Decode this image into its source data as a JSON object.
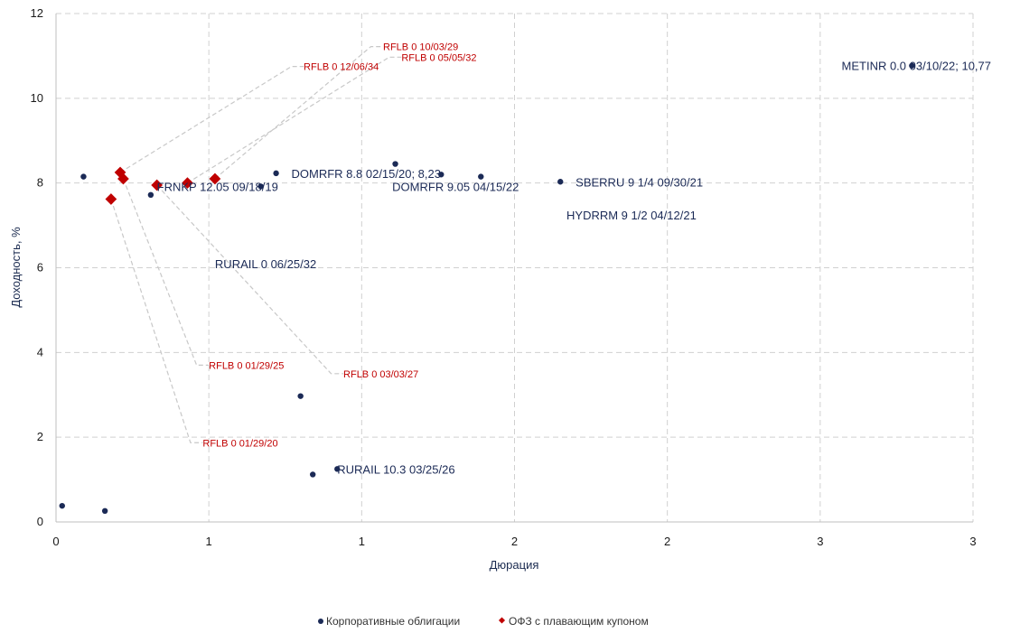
{
  "colors": {
    "corporate": "#1b2a56",
    "ofz": "#c00000",
    "grid": "#d0d0d0",
    "leader": "#c8c8c8"
  },
  "chart_data": {
    "type": "scatter",
    "title": "",
    "xlabel": "Дюрация",
    "ylabel": "Доходность, %",
    "xlim": [
      0,
      3
    ],
    "ylim": [
      0,
      12
    ],
    "x_ticks": [
      {
        "v": 0,
        "label": "0"
      },
      {
        "v": 0.5,
        "label": "1"
      },
      {
        "v": 1.0,
        "label": "1"
      },
      {
        "v": 1.5,
        "label": "2"
      },
      {
        "v": 2.0,
        "label": "2"
      },
      {
        "v": 2.5,
        "label": "3"
      },
      {
        "v": 3.0,
        "label": "3"
      }
    ],
    "y_ticks": [
      {
        "v": 0,
        "label": "0"
      },
      {
        "v": 2,
        "label": "2"
      },
      {
        "v": 4,
        "label": "4"
      },
      {
        "v": 6,
        "label": "6"
      },
      {
        "v": 8,
        "label": "8"
      },
      {
        "v": 10,
        "label": "10"
      },
      {
        "v": 12,
        "label": "12"
      }
    ],
    "grid": true,
    "legend_position": "bottom",
    "series": [
      {
        "name": "Корпоративные облигации",
        "marker": "circle",
        "points": [
          {
            "x": 0.02,
            "y": 0.38
          },
          {
            "x": 0.16,
            "y": 0.26
          },
          {
            "x": 0.09,
            "y": 8.15
          },
          {
            "x": 0.31,
            "y": 7.72
          },
          {
            "x": 0.67,
            "y": 7.92
          },
          {
            "x": 0.72,
            "y": 8.23
          },
          {
            "x": 0.8,
            "y": 2.97
          },
          {
            "x": 0.84,
            "y": 1.12
          },
          {
            "x": 0.92,
            "y": 1.25
          },
          {
            "x": 1.11,
            "y": 8.45
          },
          {
            "x": 1.26,
            "y": 8.2
          },
          {
            "x": 1.39,
            "y": 8.15
          },
          {
            "x": 1.65,
            "y": 8.03
          },
          {
            "x": 2.8,
            "y": 10.77
          }
        ]
      },
      {
        "name": "ОФЗ с плавающим купоном",
        "marker": "diamond",
        "points": [
          {
            "x": 0.18,
            "y": 7.62
          },
          {
            "x": 0.21,
            "y": 8.25
          },
          {
            "x": 0.22,
            "y": 8.1
          },
          {
            "x": 0.33,
            "y": 7.95
          },
          {
            "x": 0.43,
            "y": 8.0
          },
          {
            "x": 0.52,
            "y": 8.1
          }
        ]
      }
    ],
    "corporate_labels": [
      {
        "text": "FRNKP 12.05 09/18/19",
        "x": 0.33,
        "y": 7.92
      },
      {
        "text": "DOMRFR 8.8 02/15/20; 8,23",
        "x": 0.77,
        "y": 8.23
      },
      {
        "text": "RURAIL 0 06/25/32",
        "x": 0.52,
        "y": 6.1
      },
      {
        "text": "DOMRFR 9.05 04/15/22",
        "x": 1.1,
        "y": 7.92
      },
      {
        "text": "SBERRU 9 1/4 09/30/21",
        "x": 1.7,
        "y": 8.03
      },
      {
        "text": "HYDRRM 9 1/2 04/12/21",
        "x": 1.67,
        "y": 7.25
      },
      {
        "text": "METINR 0.0 03/10/22; 10,77",
        "x": 2.57,
        "y": 10.77
      },
      {
        "text": "RURAIL 10.3 03/25/26",
        "x": 0.92,
        "y": 1.25
      }
    ],
    "ofz_labels": [
      {
        "text": "RFLB 0 10/03/29",
        "x": 1.07,
        "y": 11.22,
        "anchor_x": 0.52,
        "anchor_y": 8.1,
        "elbow_x": 1.03,
        "elbow_y": 11.22
      },
      {
        "text": "RFLB 0 05/05/32",
        "x": 1.13,
        "y": 10.97,
        "anchor_x": 0.43,
        "anchor_y": 8.0,
        "elbow_x": 1.09,
        "elbow_y": 10.97
      },
      {
        "text": "RFLB 0 12/06/34",
        "x": 0.81,
        "y": 10.75,
        "anchor_x": 0.21,
        "anchor_y": 8.25,
        "elbow_x": 0.77,
        "elbow_y": 10.75
      },
      {
        "text": "RFLB 0 01/29/25",
        "x": 0.5,
        "y": 3.7,
        "anchor_x": 0.22,
        "anchor_y": 8.1,
        "elbow_x": 0.46,
        "elbow_y": 3.7
      },
      {
        "text": "RFLB 0 03/03/27",
        "x": 0.94,
        "y": 3.5,
        "anchor_x": 0.33,
        "anchor_y": 7.95,
        "elbow_x": 0.9,
        "elbow_y": 3.5
      },
      {
        "text": "RFLB 0 01/29/20",
        "x": 0.48,
        "y": 1.87,
        "anchor_x": 0.18,
        "anchor_y": 7.62,
        "elbow_x": 0.44,
        "elbow_y": 1.87
      }
    ]
  }
}
